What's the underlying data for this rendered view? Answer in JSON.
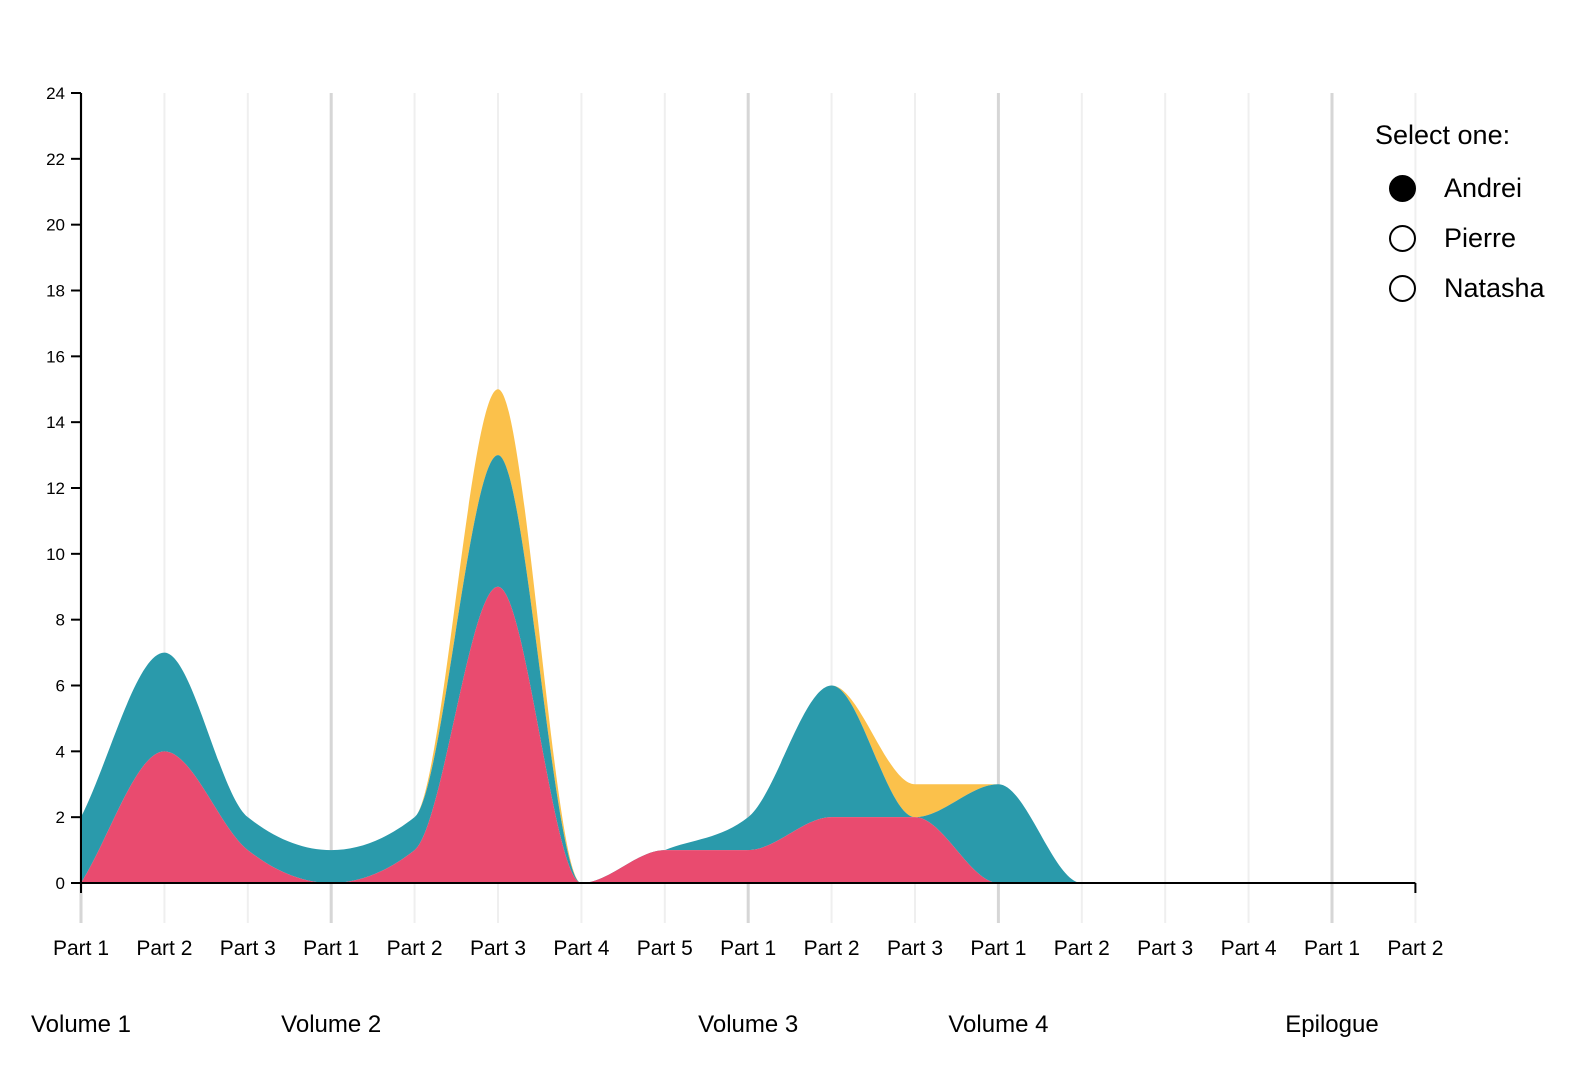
{
  "chart_data": {
    "type": "area",
    "stacked": true,
    "x": [
      "Part 1",
      "Part 2",
      "Part 3",
      "Part 1",
      "Part 2",
      "Part 3",
      "Part 4",
      "Part 5",
      "Part 1",
      "Part 2",
      "Part 3",
      "Part 1",
      "Part 2",
      "Part 3",
      "Part 4",
      "Part 1",
      "Part 2"
    ],
    "volumes": [
      {
        "label": "Volume 1",
        "start": 0
      },
      {
        "label": "Volume 2",
        "start": 3
      },
      {
        "label": "Volume 3",
        "start": 8
      },
      {
        "label": "Volume 4",
        "start": 11
      },
      {
        "label": "Epilogue",
        "start": 15
      }
    ],
    "series": [
      {
        "color": "#e94b6f",
        "values": [
          0,
          4,
          1,
          0,
          1,
          9,
          0,
          1,
          1,
          2,
          2,
          0,
          0,
          0,
          0,
          0,
          0
        ]
      },
      {
        "color": "#2a9aab",
        "values": [
          2,
          3,
          1,
          1,
          1,
          4,
          0,
          0,
          1,
          4,
          0,
          3,
          0,
          0,
          0,
          0,
          0
        ]
      },
      {
        "color": "#fbc14b",
        "values": [
          0,
          0,
          0,
          0,
          0,
          2,
          0,
          0,
          0,
          0,
          1,
          0,
          0,
          0,
          0,
          0,
          0
        ]
      }
    ],
    "ylim": [
      0,
      24
    ],
    "yticks": [
      0,
      2,
      4,
      6,
      8,
      10,
      12,
      14,
      16,
      18,
      20,
      22,
      24
    ],
    "grid": true
  },
  "legend": {
    "title": "Select one:",
    "options": [
      {
        "label": "Andrei",
        "checked": true
      },
      {
        "label": "Pierre",
        "checked": false
      },
      {
        "label": "Natasha",
        "checked": false
      }
    ]
  }
}
